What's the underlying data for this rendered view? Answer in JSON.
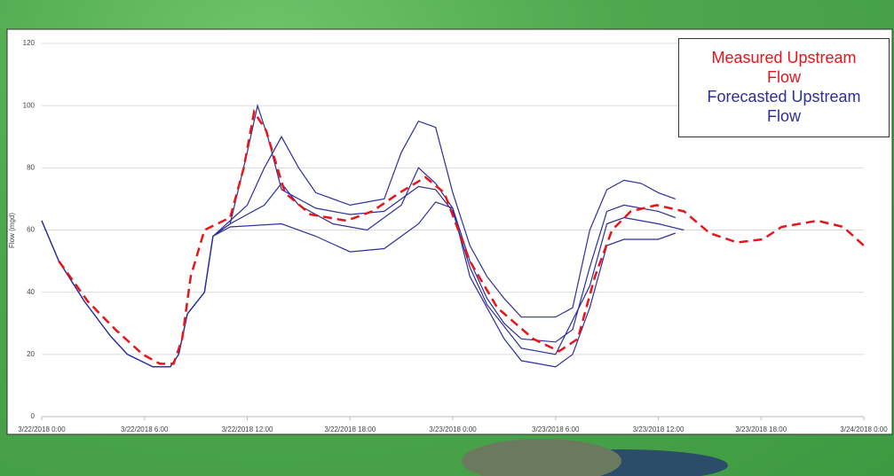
{
  "chart_data": {
    "type": "line",
    "y_label": "Flow (mgd)",
    "xlim": [
      0,
      48
    ],
    "xticks": [
      {
        "value": 0,
        "label": "3/22/2018 0:00"
      },
      {
        "value": 6,
        "label": "3/22/2018 6:00"
      },
      {
        "value": 12,
        "label": "3/22/2018 12:00"
      },
      {
        "value": 18,
        "label": "3/22/2018 18:00"
      },
      {
        "value": 24,
        "label": "3/23/2018 0:00"
      },
      {
        "value": 30,
        "label": "3/23/2018 6:00"
      },
      {
        "value": 36,
        "label": "3/23/2018 12:00"
      },
      {
        "value": 42,
        "label": "3/23/2018 18:00"
      },
      {
        "value": 48,
        "label": "3/24/2018 0:00"
      }
    ],
    "ylim": [
      0,
      120
    ],
    "yticks": [
      0,
      20,
      40,
      60,
      80,
      100,
      120
    ],
    "grid": true,
    "legend": "top-right",
    "series": [
      {
        "name": "Measured Upstream Flow",
        "color": "#e8141a",
        "dashed": true,
        "x": [
          1,
          2.7,
          4.3,
          5.9,
          6.9,
          7.7,
          8.2,
          8.7,
          9.5,
          11,
          11.8,
          12.4,
          13.1,
          14.2,
          15.7,
          17.8,
          19.3,
          20.9,
          22.4,
          23.5,
          25,
          26.6,
          28.7,
          30.2,
          31.3,
          32.3,
          33.3,
          34.4,
          35.9,
          37.5,
          39,
          40.6,
          42.1,
          43.2,
          45.3,
          46.8,
          48
        ],
        "values": [
          50,
          37,
          28,
          20,
          17,
          17,
          25,
          45,
          60,
          64,
          80,
          98,
          92,
          72,
          65,
          63,
          66,
          72,
          77,
          72,
          50,
          35,
          25,
          21,
          25,
          45,
          60,
          66,
          68,
          66,
          59,
          56,
          57,
          61,
          63,
          61,
          55
        ]
      },
      {
        "name": "Forecasted Upstream Flow",
        "color": "#2e2e9c",
        "runs": [
          {
            "x": [
              0,
              1,
              2.5,
              4,
              5,
              6.5,
              7.5,
              8,
              8.5,
              9.5,
              10,
              11,
              14,
              16,
              18,
              20,
              22,
              23,
              24,
              25,
              26,
              27,
              28,
              30,
              31,
              32,
              33,
              34,
              36,
              37
            ],
            "values": [
              63,
              50,
              37,
              26,
              20,
              16,
              16,
              20,
              33,
              40,
              58,
              61,
              62,
              58,
              53,
              54,
              62,
              69,
              67,
              45,
              35,
              25,
              18,
              16,
              20,
              35,
              55,
              57,
              57,
              59
            ]
          },
          {
            "x": [
              0,
              1,
              2.5,
              4,
              5,
              6.5,
              7.5,
              8,
              8.5,
              9.5,
              10,
              11,
              13,
              14,
              15,
              17,
              19,
              21,
              22,
              23,
              24,
              25,
              26,
              27,
              28,
              30,
              31,
              32,
              33,
              34,
              36,
              37
            ],
            "values": [
              63,
              50,
              37,
              26,
              20,
              16,
              16,
              20,
              33,
              40,
              58,
              62,
              68,
              75,
              68,
              62,
              60,
              68,
              80,
              75,
              67,
              50,
              38,
              30,
              25,
              24,
              28,
              48,
              66,
              68,
              66,
              64
            ]
          },
          {
            "x": [
              0,
              1,
              2.5,
              4,
              5,
              6.5,
              7.5,
              8,
              8.5,
              9.5,
              10,
              11,
              12,
              12.6,
              13.2,
              14,
              16,
              18,
              20,
              22,
              23,
              24,
              25,
              26,
              28,
              30,
              32,
              33,
              34,
              36,
              37.5
            ],
            "values": [
              63,
              50,
              37,
              26,
              20,
              16,
              16,
              20,
              33,
              40,
              58,
              62,
              85,
              100,
              90,
              73,
              67,
              65,
              66,
              74,
              73,
              66,
              48,
              36,
              22,
              20,
              42,
              62,
              64,
              62,
              60
            ]
          },
          {
            "x": [
              0,
              1,
              2.5,
              4,
              5,
              6.5,
              7.5,
              8,
              8.5,
              9.5,
              10,
              11,
              12,
              13,
              14,
              15,
              16,
              18,
              20,
              21,
              22,
              23,
              24,
              25,
              26,
              27,
              28,
              30,
              31,
              32,
              33,
              34,
              35,
              36,
              37
            ],
            "values": [
              63,
              50,
              37,
              26,
              20,
              16,
              16,
              20,
              33,
              40,
              58,
              63,
              68,
              80,
              90,
              80,
              72,
              68,
              70,
              85,
              95,
              93,
              72,
              55,
              45,
              38,
              32,
              32,
              35,
              60,
              73,
              76,
              75,
              72,
              70
            ]
          }
        ]
      }
    ]
  }
}
